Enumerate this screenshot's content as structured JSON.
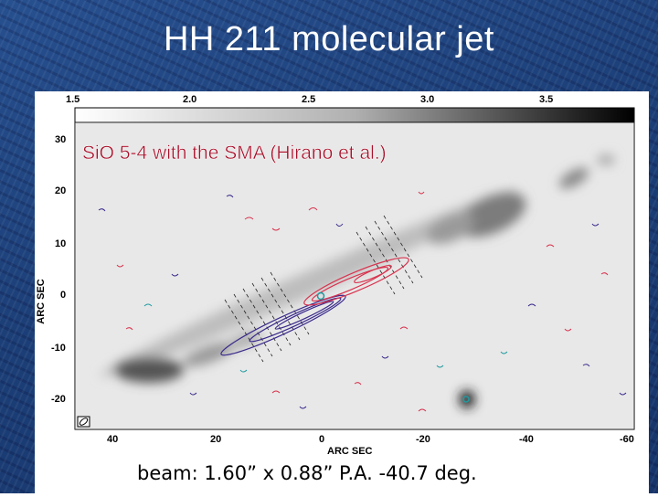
{
  "slide": {
    "title": "HH 211 molecular jet",
    "caption": "beam: 1.60” x 0.88” P.A. -40.7 deg."
  },
  "figure": {
    "overlay_label": "SiO 5-4 with the SMA (Hirano et al.)",
    "colorbar_ticks": [
      "1.5",
      "2.0",
      "2.5",
      "3.0",
      "3.5"
    ],
    "x_axis": {
      "label": "ARC SEC",
      "ticks": [
        "40",
        "20",
        "0",
        "-20",
        "-40",
        "-60"
      ]
    },
    "y_axis": {
      "label": "ARC SEC",
      "ticks": [
        "30",
        "20",
        "10",
        "0",
        "-10",
        "-20"
      ]
    },
    "colors": {
      "redshifted_contours": "#d8344f",
      "blueshifted_contours": "#3a2a8c",
      "cyan_contours": "#1f9aa0",
      "background": "#1e4380"
    }
  }
}
